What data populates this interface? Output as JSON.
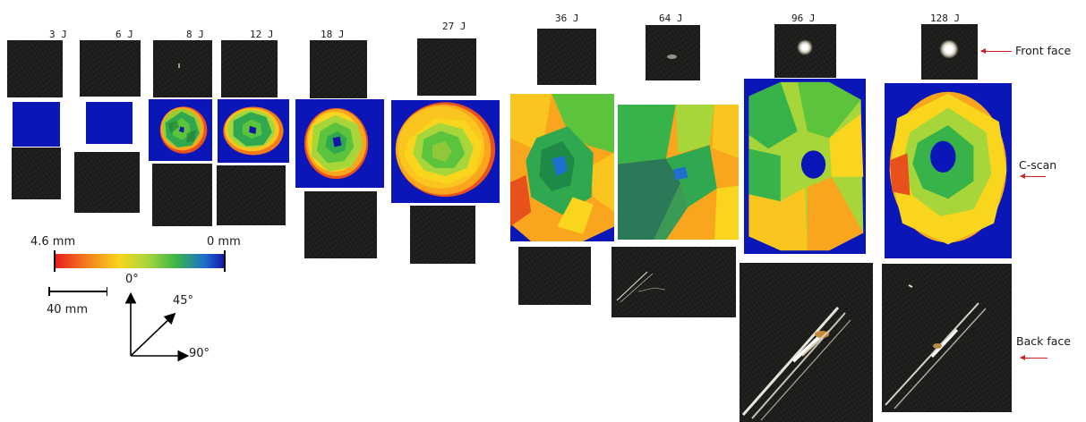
{
  "energies": [
    "3 J",
    "6 J",
    "8 J",
    "12 J",
    "18 J",
    "27 J",
    "36 J",
    "64 J",
    "96 J",
    "128 J"
  ],
  "row_labels": {
    "front": "Front face",
    "cscan": "C-scan",
    "back": "Back face"
  },
  "colorbar": {
    "left_label": "4.6 mm",
    "right_label": "0 mm",
    "colors": [
      "#e81c1c",
      "#f47a1c",
      "#f9d51e",
      "#a6d63a",
      "#38b34a",
      "#1e6fcf",
      "#1414a8"
    ]
  },
  "scale_bar": {
    "label": "40 mm"
  },
  "orientation": {
    "up": "0°",
    "diag": "45°",
    "right": "90°"
  },
  "colors": {
    "background": "#ffffff",
    "photo": "#1d1d1b",
    "cscan_background": "#0a16b8",
    "arrow": "#d42020"
  }
}
